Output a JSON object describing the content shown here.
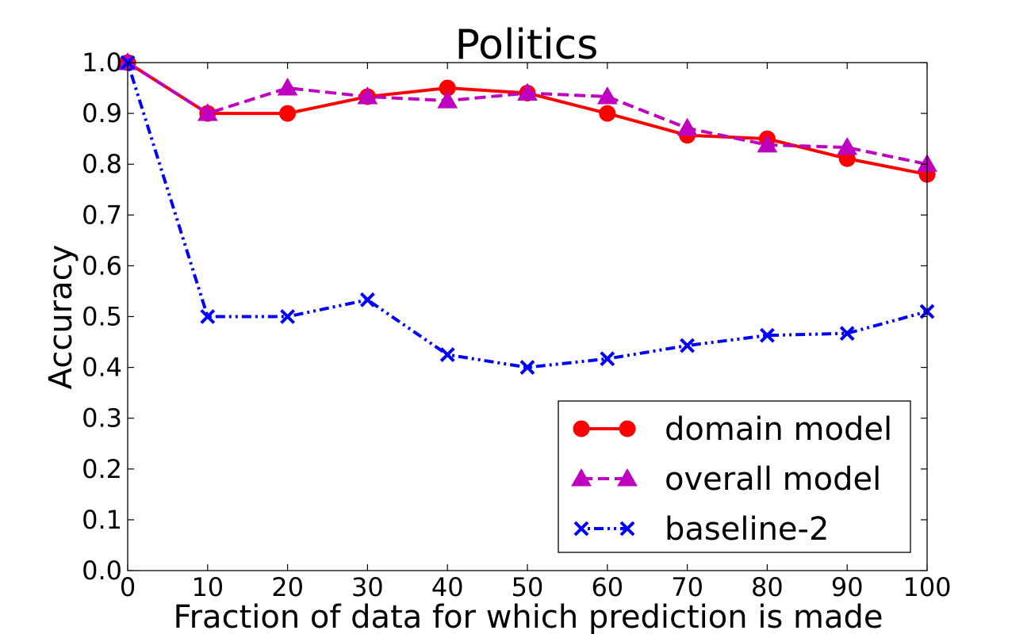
{
  "chart_data": {
    "type": "line",
    "title": "Politics",
    "xlabel": "Fraction of data for which prediction is made",
    "ylabel": "Accuracy",
    "xlim": [
      0,
      100
    ],
    "ylim": [
      0.0,
      1.0
    ],
    "x_ticks": [
      "0",
      "10",
      "20",
      "30",
      "40",
      "50",
      "60",
      "70",
      "80",
      "90",
      "100"
    ],
    "y_ticks": [
      "0.0",
      "0.1",
      "0.2",
      "0.3",
      "0.4",
      "0.5",
      "0.6",
      "0.7",
      "0.8",
      "0.9",
      "1.0"
    ],
    "grid": false,
    "legend_position": "lower-right",
    "x": [
      0,
      10,
      20,
      30,
      40,
      50,
      60,
      70,
      80,
      90,
      100
    ],
    "series": [
      {
        "name": "domain model",
        "color": "#ff0000",
        "line_style": "solid",
        "marker": "circle",
        "values": [
          1.0,
          0.9,
          0.9,
          0.933,
          0.95,
          0.94,
          0.9,
          0.857,
          0.85,
          0.811,
          0.78
        ]
      },
      {
        "name": "overall model",
        "color": "#bf00bf",
        "line_style": "dashed",
        "marker": "triangle",
        "values": [
          1.0,
          0.9,
          0.95,
          0.933,
          0.925,
          0.94,
          0.933,
          0.871,
          0.838,
          0.833,
          0.8
        ]
      },
      {
        "name": "baseline-2",
        "color": "#0000ff",
        "line_style": "dashdot",
        "marker": "x",
        "values": [
          1.0,
          0.5,
          0.5,
          0.533,
          0.425,
          0.4,
          0.417,
          0.443,
          0.463,
          0.467,
          0.51
        ]
      }
    ]
  }
}
